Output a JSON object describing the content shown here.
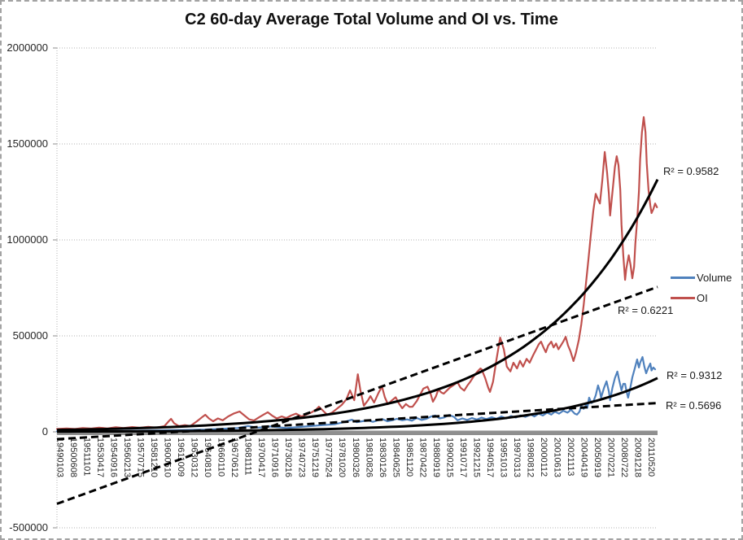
{
  "title": "C2 60-day Average Total Volume and OI vs. Time",
  "chart_data": {
    "type": "line",
    "title": "C2 60-day Average Total Volume and OI vs. Time",
    "y_axis": {
      "min": -500000,
      "max": 2000000,
      "gridline_step": 500000,
      "tick_labels": [
        "2000000",
        "1500000",
        "1000000",
        "500000",
        "0",
        "-500000"
      ],
      "gridlines": "dotted"
    },
    "x_axis": {
      "labels": [
        "19490103",
        "19500608",
        "19511101",
        "19530417",
        "19540916",
        "19560213",
        "19570715",
        "19581210",
        "19600510",
        "19611009",
        "19630312",
        "19640810",
        "19660110",
        "19670612",
        "19681111",
        "19700417",
        "19710916",
        "19730216",
        "19740723",
        "19751219",
        "19770524",
        "19781020",
        "19800326",
        "19810826",
        "19830126",
        "19840625",
        "19851120",
        "19870422",
        "19880919",
        "19900215",
        "19910717",
        "19921215",
        "19940517",
        "19951013",
        "19970313",
        "19980812",
        "20000112",
        "20010613",
        "20021113",
        "20040419",
        "20050919",
        "20070221",
        "20080722",
        "20091218",
        "20110520"
      ]
    },
    "legend": {
      "position": "right",
      "items": [
        {
          "label": "Volume",
          "color": "#4F81BD"
        },
        {
          "label": "OI",
          "color": "#C0504D"
        }
      ]
    },
    "series": [
      {
        "name": "Volume",
        "color": "#4F81BD",
        "points": [
          [
            0.0,
            3000
          ],
          [
            0.043,
            4000
          ],
          [
            0.111,
            5000
          ],
          [
            0.179,
            8000
          ],
          [
            0.247,
            12000
          ],
          [
            0.301,
            20000
          ],
          [
            0.318,
            30000
          ],
          [
            0.335,
            22000
          ],
          [
            0.355,
            28000
          ],
          [
            0.382,
            20000
          ],
          [
            0.402,
            25000
          ],
          [
            0.423,
            30000
          ],
          [
            0.443,
            35000
          ],
          [
            0.463,
            40000
          ],
          [
            0.477,
            50000
          ],
          [
            0.491,
            63000
          ],
          [
            0.499,
            50000
          ],
          [
            0.508,
            55000
          ],
          [
            0.518,
            60000
          ],
          [
            0.526,
            52000
          ],
          [
            0.534,
            60000
          ],
          [
            0.542,
            66000
          ],
          [
            0.55,
            55000
          ],
          [
            0.558,
            60000
          ],
          [
            0.566,
            68000
          ],
          [
            0.575,
            60000
          ],
          [
            0.583,
            65000
          ],
          [
            0.591,
            58000
          ],
          [
            0.599,
            72000
          ],
          [
            0.607,
            62000
          ],
          [
            0.615,
            68000
          ],
          [
            0.623,
            80000
          ],
          [
            0.63,
            85000
          ],
          [
            0.637,
            70000
          ],
          [
            0.645,
            75000
          ],
          [
            0.653,
            88000
          ],
          [
            0.661,
            78000
          ],
          [
            0.667,
            60000
          ],
          [
            0.675,
            70000
          ],
          [
            0.683,
            62000
          ],
          [
            0.691,
            72000
          ],
          [
            0.699,
            64000
          ],
          [
            0.707,
            74000
          ],
          [
            0.715,
            66000
          ],
          [
            0.724,
            76000
          ],
          [
            0.732,
            68000
          ],
          [
            0.74,
            80000
          ],
          [
            0.748,
            70000
          ],
          [
            0.756,
            82000
          ],
          [
            0.764,
            74000
          ],
          [
            0.772,
            86000
          ],
          [
            0.78,
            78000
          ],
          [
            0.789,
            90000
          ],
          [
            0.795,
            80000
          ],
          [
            0.802,
            95000
          ],
          [
            0.809,
            85000
          ],
          [
            0.816,
            100000
          ],
          [
            0.823,
            90000
          ],
          [
            0.829,
            105000
          ],
          [
            0.836,
            95000
          ],
          [
            0.843,
            110000
          ],
          [
            0.85,
            100000
          ],
          [
            0.856,
            115000
          ],
          [
            0.862,
            95000
          ],
          [
            0.866,
            90000
          ],
          [
            0.87,
            105000
          ],
          [
            0.873,
            135000
          ],
          [
            0.877,
            120000
          ],
          [
            0.881,
            140000
          ],
          [
            0.883,
            125000
          ],
          [
            0.886,
            178000
          ],
          [
            0.89,
            150000
          ],
          [
            0.893,
            157000
          ],
          [
            0.897,
            190000
          ],
          [
            0.901,
            242000
          ],
          [
            0.904,
            210000
          ],
          [
            0.906,
            178000
          ],
          [
            0.911,
            230000
          ],
          [
            0.915,
            263000
          ],
          [
            0.919,
            210000
          ],
          [
            0.921,
            165000
          ],
          [
            0.925,
            230000
          ],
          [
            0.929,
            280000
          ],
          [
            0.933,
            314000
          ],
          [
            0.936,
            270000
          ],
          [
            0.94,
            216000
          ],
          [
            0.943,
            250000
          ],
          [
            0.946,
            250000
          ],
          [
            0.948,
            216000
          ],
          [
            0.951,
            178000
          ],
          [
            0.954,
            220000
          ],
          [
            0.958,
            284000
          ],
          [
            0.962,
            330000
          ],
          [
            0.966,
            377000
          ],
          [
            0.969,
            335000
          ],
          [
            0.971,
            360000
          ],
          [
            0.975,
            390000
          ],
          [
            0.978,
            340000
          ],
          [
            0.981,
            305000
          ],
          [
            0.984,
            330000
          ],
          [
            0.988,
            356000
          ],
          [
            0.99,
            320000
          ],
          [
            0.993,
            335000
          ],
          [
            0.996,
            326000
          ]
        ]
      },
      {
        "name": "OI",
        "color": "#C0504D",
        "points": [
          [
            0.0,
            15000
          ],
          [
            0.016,
            18000
          ],
          [
            0.03,
            15000
          ],
          [
            0.043,
            20000
          ],
          [
            0.057,
            17000
          ],
          [
            0.07,
            22000
          ],
          [
            0.084,
            18000
          ],
          [
            0.098,
            24000
          ],
          [
            0.111,
            20000
          ],
          [
            0.125,
            25000
          ],
          [
            0.138,
            21000
          ],
          [
            0.152,
            26000
          ],
          [
            0.165,
            22000
          ],
          [
            0.179,
            30000
          ],
          [
            0.186,
            55000
          ],
          [
            0.19,
            68000
          ],
          [
            0.195,
            45000
          ],
          [
            0.203,
            30000
          ],
          [
            0.213,
            35000
          ],
          [
            0.222,
            30000
          ],
          [
            0.233,
            55000
          ],
          [
            0.241,
            75000
          ],
          [
            0.247,
            89000
          ],
          [
            0.253,
            70000
          ],
          [
            0.26,
            55000
          ],
          [
            0.268,
            70000
          ],
          [
            0.276,
            60000
          ],
          [
            0.285,
            80000
          ],
          [
            0.294,
            95000
          ],
          [
            0.304,
            106000
          ],
          [
            0.312,
            85000
          ],
          [
            0.32,
            65000
          ],
          [
            0.328,
            59000
          ],
          [
            0.336,
            75000
          ],
          [
            0.344,
            90000
          ],
          [
            0.351,
            102000
          ],
          [
            0.358,
            85000
          ],
          [
            0.366,
            70000
          ],
          [
            0.374,
            80000
          ],
          [
            0.382,
            72000
          ],
          [
            0.39,
            85000
          ],
          [
            0.398,
            95000
          ],
          [
            0.407,
            80000
          ],
          [
            0.415,
            90000
          ],
          [
            0.423,
            100000
          ],
          [
            0.431,
            115000
          ],
          [
            0.436,
            131000
          ],
          [
            0.443,
            110000
          ],
          [
            0.45,
            89000
          ],
          [
            0.458,
            100000
          ],
          [
            0.466,
            120000
          ],
          [
            0.474,
            140000
          ],
          [
            0.482,
            170000
          ],
          [
            0.488,
            216000
          ],
          [
            0.495,
            165000
          ],
          [
            0.501,
            300000
          ],
          [
            0.505,
            220000
          ],
          [
            0.511,
            136000
          ],
          [
            0.518,
            165000
          ],
          [
            0.522,
            186000
          ],
          [
            0.528,
            153000
          ],
          [
            0.535,
            200000
          ],
          [
            0.541,
            237000
          ],
          [
            0.546,
            180000
          ],
          [
            0.551,
            144000
          ],
          [
            0.558,
            165000
          ],
          [
            0.564,
            180000
          ],
          [
            0.569,
            150000
          ],
          [
            0.575,
            123000
          ],
          [
            0.581,
            145000
          ],
          [
            0.587,
            130000
          ],
          [
            0.592,
            131000
          ],
          [
            0.599,
            160000
          ],
          [
            0.604,
            190000
          ],
          [
            0.61,
            225000
          ],
          [
            0.617,
            235000
          ],
          [
            0.622,
            200000
          ],
          [
            0.626,
            157000
          ],
          [
            0.631,
            185000
          ],
          [
            0.635,
            220000
          ],
          [
            0.64,
            205000
          ],
          [
            0.644,
            199000
          ],
          [
            0.649,
            215000
          ],
          [
            0.654,
            230000
          ],
          [
            0.661,
            245000
          ],
          [
            0.667,
            258000
          ],
          [
            0.672,
            230000
          ],
          [
            0.678,
            215000
          ],
          [
            0.683,
            240000
          ],
          [
            0.688,
            260000
          ],
          [
            0.694,
            290000
          ],
          [
            0.699,
            310000
          ],
          [
            0.705,
            330000
          ],
          [
            0.707,
            326000
          ],
          [
            0.713,
            280000
          ],
          [
            0.718,
            230000
          ],
          [
            0.721,
            208000
          ],
          [
            0.726,
            260000
          ],
          [
            0.732,
            380000
          ],
          [
            0.738,
            491000
          ],
          [
            0.744,
            430000
          ],
          [
            0.749,
            340000
          ],
          [
            0.755,
            315000
          ],
          [
            0.76,
            360000
          ],
          [
            0.766,
            330000
          ],
          [
            0.771,
            370000
          ],
          [
            0.776,
            340000
          ],
          [
            0.782,
            380000
          ],
          [
            0.787,
            360000
          ],
          [
            0.793,
            400000
          ],
          [
            0.798,
            430000
          ],
          [
            0.802,
            455000
          ],
          [
            0.806,
            470000
          ],
          [
            0.81,
            440000
          ],
          [
            0.814,
            415000
          ],
          [
            0.818,
            450000
          ],
          [
            0.823,
            470000
          ],
          [
            0.827,
            440000
          ],
          [
            0.831,
            460000
          ],
          [
            0.835,
            430000
          ],
          [
            0.839,
            450000
          ],
          [
            0.843,
            470000
          ],
          [
            0.847,
            495000
          ],
          [
            0.851,
            450000
          ],
          [
            0.855,
            420000
          ],
          [
            0.86,
            369000
          ],
          [
            0.864,
            410000
          ],
          [
            0.869,
            480000
          ],
          [
            0.873,
            560000
          ],
          [
            0.877,
            660000
          ],
          [
            0.881,
            780000
          ],
          [
            0.885,
            900000
          ],
          [
            0.889,
            1030000
          ],
          [
            0.893,
            1150000
          ],
          [
            0.897,
            1240000
          ],
          [
            0.901,
            1210000
          ],
          [
            0.904,
            1190000
          ],
          [
            0.908,
            1310000
          ],
          [
            0.912,
            1458000
          ],
          [
            0.916,
            1350000
          ],
          [
            0.919,
            1240000
          ],
          [
            0.921,
            1127000
          ],
          [
            0.925,
            1250000
          ],
          [
            0.929,
            1380000
          ],
          [
            0.932,
            1436000
          ],
          [
            0.935,
            1390000
          ],
          [
            0.938,
            1260000
          ],
          [
            0.94,
            1080000
          ],
          [
            0.943,
            920000
          ],
          [
            0.946,
            792000
          ],
          [
            0.948,
            850000
          ],
          [
            0.952,
            920000
          ],
          [
            0.955,
            870000
          ],
          [
            0.958,
            800000
          ],
          [
            0.961,
            860000
          ],
          [
            0.963,
            980000
          ],
          [
            0.966,
            1100000
          ],
          [
            0.969,
            1250000
          ],
          [
            0.971,
            1420000
          ],
          [
            0.974,
            1560000
          ],
          [
            0.977,
            1640000
          ],
          [
            0.98,
            1560000
          ],
          [
            0.982,
            1400000
          ],
          [
            0.985,
            1260000
          ],
          [
            0.988,
            1180000
          ],
          [
            0.99,
            1140000
          ],
          [
            0.993,
            1160000
          ],
          [
            0.996,
            1190000
          ],
          [
            0.999,
            1170000
          ]
        ]
      }
    ],
    "trendlines": [
      {
        "for": "OI",
        "kind": "exponential",
        "style": "solid",
        "start_value": 10000,
        "end_value": 1315000,
        "r2_label": "R² = 0.9582"
      },
      {
        "for": "OI",
        "kind": "linear",
        "style": "dashed",
        "start_value": -375000,
        "end_value": 755000,
        "r2_label": "R² = 0.6221"
      },
      {
        "for": "Volume",
        "kind": "exponential",
        "style": "solid",
        "start_value": 1300,
        "end_value": 280000,
        "r2_label": "R² = 0.9312"
      },
      {
        "for": "Volume",
        "kind": "linear",
        "style": "dashed",
        "start_value": -38000,
        "end_value": 150000,
        "r2_label": "R² = 0.5696"
      }
    ],
    "colors": {
      "trendline": "#000000",
      "gridline": "#b3b3b3",
      "x_axis_band": "#8f8f8f",
      "tick_text": "#262626"
    }
  }
}
